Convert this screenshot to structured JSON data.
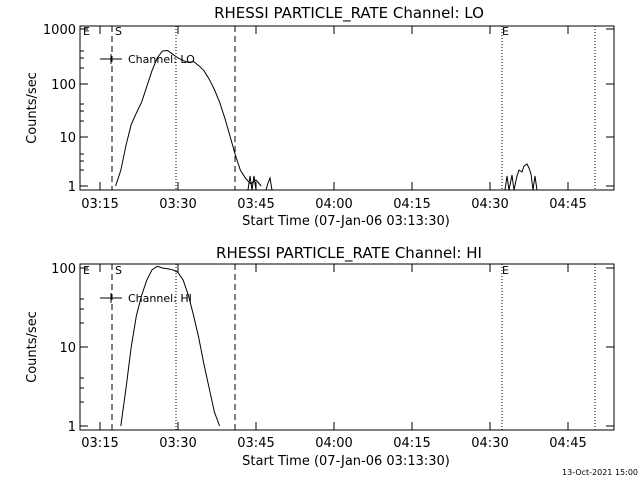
{
  "footer": {
    "timestamp": "13-Oct-2021 15:00"
  },
  "chart_data": [
    {
      "type": "line",
      "title": "RHESSI PARTICLE_RATE Channel: LO",
      "xlabel": "Start Time (07-Jan-06 03:13:30)",
      "ylabel": "Counts/sec",
      "x_ticks": [
        "03:15",
        "03:30",
        "03:45",
        "04:00",
        "04:15",
        "04:30",
        "04:45"
      ],
      "y_scale": "log",
      "y_ticks": [
        "1",
        "10",
        "100",
        "1000"
      ],
      "ylim": [
        1,
        1000
      ],
      "legend": {
        "label": "Channel: LO",
        "position": "top-left"
      },
      "markers": {
        "e_label": "E",
        "s_label": "S"
      },
      "series": [
        {
          "name": "Channel: LO",
          "x": [
            "03:18:00",
            "03:19:00",
            "03:20:00",
            "03:21:00",
            "03:22:00",
            "03:23:00",
            "03:24:00",
            "03:25:00",
            "03:26:00",
            "03:27:00",
            "03:28:00",
            "03:29:00",
            "03:30:00",
            "03:31:00",
            "03:32:00",
            "03:33:00",
            "03:34:00",
            "03:35:00",
            "03:36:00",
            "03:37:00",
            "03:38:00",
            "03:39:00",
            "03:40:00",
            "03:41:00",
            "03:42:00",
            "03:43:00",
            "03:44:00",
            "03:45:00",
            "03:46:00"
          ],
          "y": [
            1,
            2,
            6,
            15,
            25,
            40,
            80,
            160,
            280,
            380,
            390,
            330,
            280,
            250,
            230,
            240,
            200,
            160,
            110,
            70,
            40,
            20,
            9,
            4,
            2,
            1.4,
            1.1,
            1.3,
            1
          ]
        }
      ]
    },
    {
      "type": "line",
      "title": "RHESSI PARTICLE_RATE Channel: HI",
      "xlabel": "Start Time (07-Jan-06 03:13:30)",
      "ylabel": "Counts/sec",
      "x_ticks": [
        "03:15",
        "03:30",
        "03:45",
        "04:00",
        "04:15",
        "04:30",
        "04:45"
      ],
      "y_scale": "log",
      "y_ticks": [
        "1",
        "10",
        "100"
      ],
      "ylim": [
        1,
        100
      ],
      "legend": {
        "label": "Channel: HI",
        "position": "top-left"
      },
      "markers": {
        "e_label": "E",
        "s_label": "S"
      },
      "series": [
        {
          "name": "Channel: HI",
          "x": [
            "03:19:00",
            "03:20:00",
            "03:21:00",
            "03:22:00",
            "03:23:00",
            "03:24:00",
            "03:25:00",
            "03:26:00",
            "03:27:00",
            "03:28:00",
            "03:29:00",
            "03:30:00",
            "03:31:00",
            "03:32:00",
            "03:33:00",
            "03:34:00",
            "03:35:00",
            "03:36:00",
            "03:37:00",
            "03:38:00"
          ],
          "y": [
            1,
            3,
            10,
            25,
            45,
            70,
            95,
            105,
            100,
            98,
            95,
            88,
            70,
            45,
            25,
            13,
            6,
            3,
            1.5,
            1
          ]
        }
      ]
    }
  ]
}
